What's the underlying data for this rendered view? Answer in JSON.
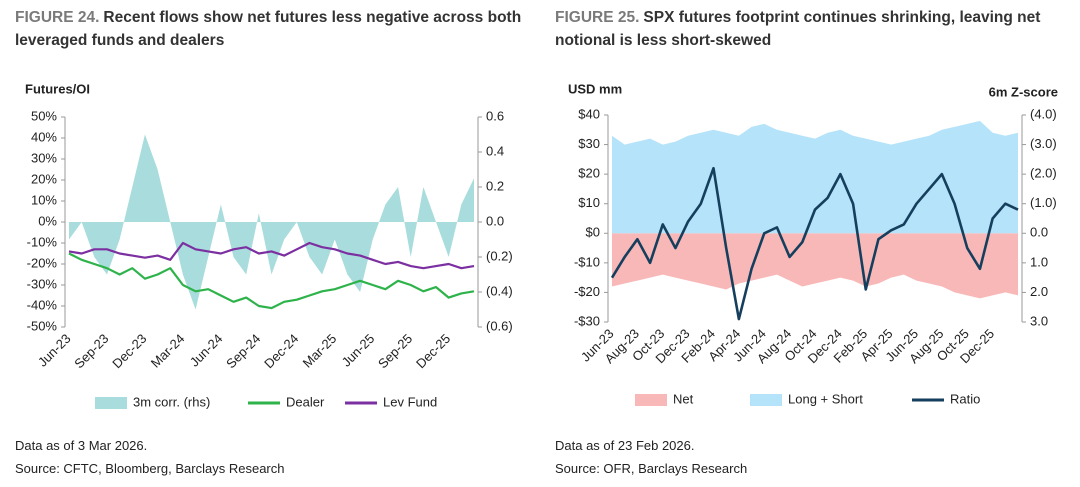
{
  "chart_data": [
    {
      "type": "line",
      "figure": "FIGURE 24.",
      "title": "Recent flows show net futures less negative across both leveraged funds and dealers",
      "ylabel": "Futures/OI",
      "categories": [
        "Jun-23",
        null,
        null,
        "Sep-23",
        null,
        null,
        "Dec-23",
        null,
        null,
        "Mar-24",
        null,
        null,
        "Jun-24",
        null,
        null,
        "Sep-24",
        null,
        null,
        "Dec-24",
        null,
        null,
        "Mar-25",
        null,
        null,
        "Jun-25",
        null,
        null,
        "Sep-25",
        null,
        null,
        "Dec-25",
        null,
        null
      ],
      "ylim": [
        -50,
        50
      ],
      "yticks": [
        {
          "value": 50,
          "label": "50%"
        },
        {
          "value": 40,
          "label": "40%"
        },
        {
          "value": 30,
          "label": "30%"
        },
        {
          "value": 20,
          "label": "20%"
        },
        {
          "value": 10,
          "label": "10%"
        },
        {
          "value": 0,
          "label": "0%"
        },
        {
          "value": -10,
          "label": "-10%"
        },
        {
          "value": -20,
          "label": "-20%"
        },
        {
          "value": -30,
          "label": "-30%"
        },
        {
          "value": -40,
          "label": "-40%"
        },
        {
          "value": -50,
          "label": "-50%"
        }
      ],
      "y2lim": [
        -0.6,
        0.6
      ],
      "y2ticks": [
        0.6,
        0.4,
        0.2,
        {
          "value": 0,
          "label": "0.0"
        },
        {
          "value": -0.2,
          "label": "(0.2)"
        },
        {
          "value": -0.4,
          "label": "(0.4)"
        },
        {
          "value": -0.6,
          "label": "(0.6)"
        }
      ],
      "series": [
        {
          "name": "3m corr. (rhs)",
          "type": "area",
          "axis": "y2",
          "color": "#a9dcdc",
          "values": [
            -0.1,
            0.0,
            -0.2,
            -0.3,
            -0.1,
            0.2,
            0.5,
            0.3,
            0.0,
            -0.3,
            -0.5,
            -0.2,
            0.1,
            -0.2,
            -0.3,
            0.05,
            -0.3,
            -0.1,
            0.0,
            -0.2,
            -0.3,
            -0.1,
            -0.3,
            -0.4,
            -0.1,
            0.1,
            0.2,
            -0.2,
            0.2,
            0.0,
            -0.2,
            0.1,
            0.25
          ]
        },
        {
          "name": "Dealer",
          "type": "line",
          "color": "#2db34a",
          "values": [
            -15,
            -18,
            -20,
            -22,
            -25,
            -22,
            -27,
            -25,
            -22,
            -30,
            -33,
            -32,
            -35,
            -38,
            -36,
            -40,
            -41,
            -38,
            -37,
            -35,
            -33,
            -32,
            -30,
            -28,
            -30,
            -32,
            -28,
            -30,
            -33,
            -31,
            -36,
            -34,
            -33
          ]
        },
        {
          "name": "Lev Fund",
          "type": "line",
          "color": "#7b2fa0",
          "values": [
            -14,
            -15,
            -13,
            -13,
            -15,
            -16,
            -17,
            -16,
            -18,
            -10,
            -13,
            -14,
            -15,
            -13,
            -12,
            -15,
            -14,
            -16,
            -13,
            -10,
            -12,
            -13,
            -15,
            -16,
            -18,
            -20,
            -19,
            -21,
            -22,
            -21,
            -20,
            -22,
            -21
          ]
        }
      ],
      "notes": [
        "Data as of 3 Mar 2026.",
        "Source: CFTC, Bloomberg, Barclays Research"
      ]
    },
    {
      "type": "line",
      "figure": "FIGURE 25.",
      "title": "SPX futures footprint continues shrinking, leaving net notional is less short-skewed",
      "ylabel": "USD mm",
      "y2label": "6m Z-score",
      "categories": [
        "Jun-23",
        null,
        "Aug-23",
        null,
        "Oct-23",
        null,
        "Dec-23",
        null,
        "Feb-24",
        null,
        "Apr-24",
        null,
        "Jun-24",
        null,
        "Aug-24",
        null,
        "Oct-24",
        null,
        "Dec-24",
        null,
        "Feb-25",
        null,
        "Apr-25",
        null,
        "Jun-25",
        null,
        "Aug-25",
        null,
        "Oct-25",
        null,
        "Dec-25",
        null,
        null
      ],
      "ylim": [
        -30,
        40
      ],
      "yticks": [
        {
          "value": 40,
          "label": "$40"
        },
        {
          "value": 30,
          "label": "$30"
        },
        {
          "value": 20,
          "label": "$20"
        },
        {
          "value": 10,
          "label": "$10"
        },
        {
          "value": 0,
          "label": "$0"
        },
        {
          "value": -10,
          "label": "-$10"
        },
        {
          "value": -20,
          "label": "-$20"
        },
        {
          "value": -30,
          "label": "-$30"
        }
      ],
      "y2lim": [
        3,
        -4
      ],
      "y2ticks": [
        {
          "value": -4,
          "label": "(4.0)"
        },
        {
          "value": -3,
          "label": "(3.0)"
        },
        {
          "value": -2,
          "label": "(2.0)"
        },
        {
          "value": -1,
          "label": "(1.0)"
        },
        {
          "value": 0,
          "label": "0.0"
        },
        {
          "value": 1,
          "label": "1.0"
        },
        {
          "value": 2,
          "label": "2.0"
        },
        {
          "value": 3,
          "label": "3.0"
        }
      ],
      "series": [
        {
          "name": "Net",
          "type": "area",
          "color": "#f9b8b8",
          "values": [
            -18,
            -17,
            -16,
            -15,
            -14,
            -15,
            -16,
            -17,
            -18,
            -19,
            -17,
            -16,
            -15,
            -14,
            -16,
            -18,
            -17,
            -16,
            -15,
            -16,
            -18,
            -17,
            -15,
            -14,
            -16,
            -17,
            -18,
            -20,
            -21,
            -22,
            -21,
            -20,
            -21
          ]
        },
        {
          "name": "Long + Short",
          "type": "area",
          "color": "#b5e3fa",
          "values": [
            33,
            30,
            31,
            32,
            30,
            31,
            33,
            34,
            35,
            34,
            33,
            36,
            37,
            35,
            34,
            33,
            32,
            34,
            35,
            33,
            32,
            31,
            30,
            31,
            32,
            33,
            35,
            36,
            37,
            38,
            34,
            33,
            34
          ]
        },
        {
          "name": "Ratio",
          "type": "line",
          "axis": "y2",
          "color": "#163f5e",
          "values": [
            1.5,
            0.8,
            0.2,
            1.0,
            -0.3,
            0.5,
            -0.4,
            -1.0,
            -2.2,
            0.5,
            2.9,
            1.2,
            0.0,
            -0.2,
            0.8,
            0.3,
            -0.8,
            -1.2,
            -2.0,
            -1.0,
            1.9,
            0.2,
            -0.1,
            -0.3,
            -1.0,
            -1.5,
            -2.0,
            -1.0,
            0.5,
            1.2,
            -0.5,
            -1.0,
            -0.8
          ]
        }
      ],
      "notes": [
        "Data as of 23 Feb 2026.",
        "Source: OFR, Barclays Research"
      ]
    }
  ]
}
